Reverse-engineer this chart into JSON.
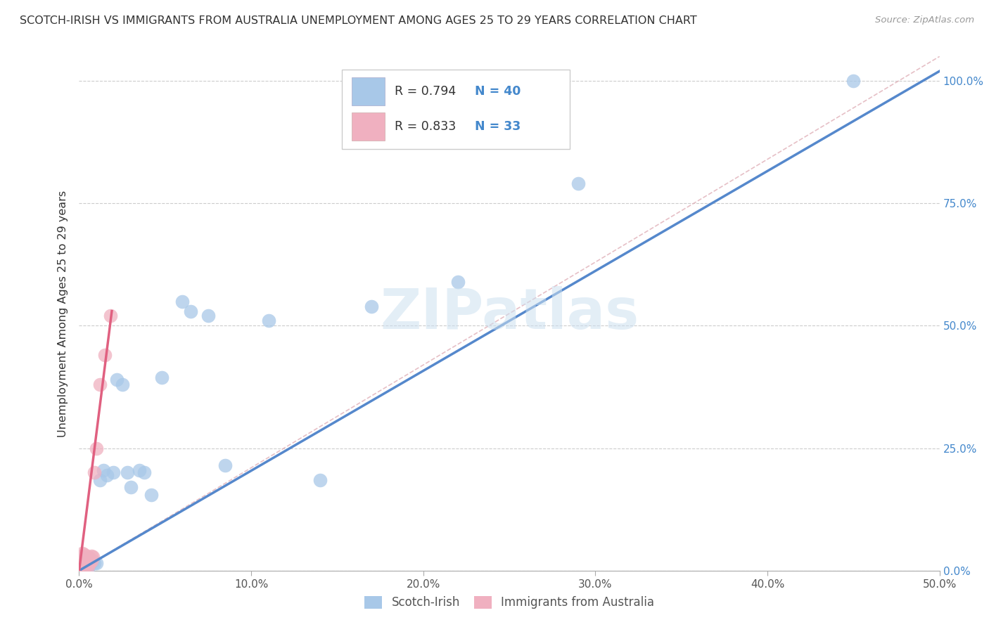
{
  "title": "SCOTCH-IRISH VS IMMIGRANTS FROM AUSTRALIA UNEMPLOYMENT AMONG AGES 25 TO 29 YEARS CORRELATION CHART",
  "source": "Source: ZipAtlas.com",
  "ylabel_left": "Unemployment Among Ages 25 to 29 years",
  "legend_label1": "Scotch-Irish",
  "legend_label2": "Immigrants from Australia",
  "R1": 0.794,
  "N1": 40,
  "R2": 0.833,
  "N2": 33,
  "color_blue": "#a8c8e8",
  "color_blue_dark": "#5588cc",
  "color_pink": "#f0b0c0",
  "color_pink_dark": "#e06080",
  "color_dashed": "#e0b0b8",
  "xlim": [
    0.0,
    0.5
  ],
  "ylim": [
    0.0,
    1.05
  ],
  "xticks": [
    0.0,
    0.1,
    0.2,
    0.3,
    0.4,
    0.5
  ],
  "yticks": [
    0.0,
    0.25,
    0.5,
    0.75,
    1.0
  ],
  "si_x": [
    0.001,
    0.001,
    0.001,
    0.002,
    0.002,
    0.002,
    0.003,
    0.003,
    0.004,
    0.004,
    0.005,
    0.005,
    0.006,
    0.006,
    0.007,
    0.008,
    0.009,
    0.01,
    0.012,
    0.014,
    0.016,
    0.02,
    0.022,
    0.025,
    0.028,
    0.03,
    0.035,
    0.038,
    0.042,
    0.048,
    0.06,
    0.065,
    0.075,
    0.085,
    0.11,
    0.14,
    0.17,
    0.22,
    0.29,
    0.45
  ],
  "si_y": [
    0.01,
    0.015,
    0.02,
    0.005,
    0.012,
    0.018,
    0.008,
    0.015,
    0.01,
    0.018,
    0.005,
    0.02,
    0.012,
    0.025,
    0.018,
    0.02,
    0.015,
    0.015,
    0.185,
    0.205,
    0.195,
    0.2,
    0.39,
    0.38,
    0.2,
    0.17,
    0.205,
    0.2,
    0.155,
    0.395,
    0.55,
    0.53,
    0.52,
    0.215,
    0.51,
    0.185,
    0.54,
    0.59,
    0.79,
    1.0
  ],
  "au_x": [
    0.001,
    0.001,
    0.001,
    0.001,
    0.001,
    0.002,
    0.002,
    0.002,
    0.002,
    0.002,
    0.002,
    0.003,
    0.003,
    0.003,
    0.003,
    0.003,
    0.003,
    0.004,
    0.004,
    0.004,
    0.005,
    0.005,
    0.005,
    0.006,
    0.006,
    0.007,
    0.007,
    0.008,
    0.009,
    0.01,
    0.012,
    0.015,
    0.018
  ],
  "au_y": [
    0.005,
    0.01,
    0.015,
    0.02,
    0.03,
    0.005,
    0.012,
    0.018,
    0.025,
    0.028,
    0.035,
    0.008,
    0.012,
    0.02,
    0.025,
    0.028,
    0.033,
    0.01,
    0.018,
    0.022,
    0.008,
    0.015,
    0.028,
    0.015,
    0.025,
    0.02,
    0.03,
    0.028,
    0.2,
    0.25,
    0.38,
    0.44,
    0.52
  ],
  "si_line_x": [
    0.0,
    0.5
  ],
  "si_line_y": [
    0.0,
    1.02
  ],
  "au_line_x": [
    0.0,
    0.019
  ],
  "au_line_y": [
    0.0,
    0.53
  ],
  "diag_line_x": [
    0.0,
    0.5
  ],
  "diag_line_y": [
    0.0,
    1.05
  ],
  "watermark": "ZIPatlas"
}
